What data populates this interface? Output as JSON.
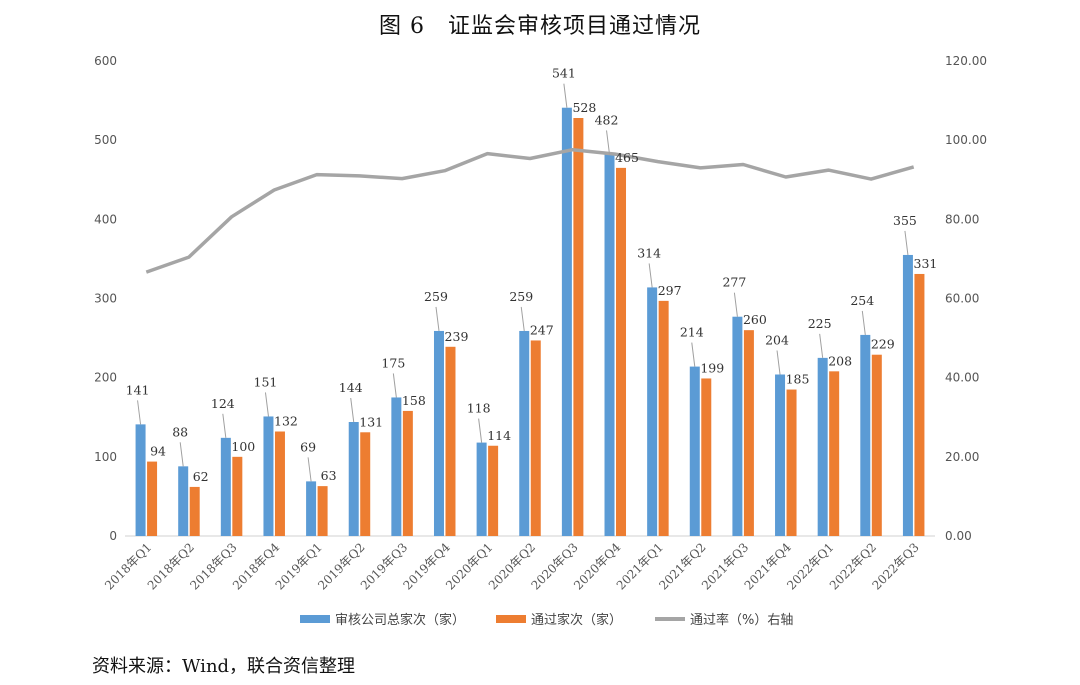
{
  "figure_title": "图 6　证监会审核项目通过情况",
  "source_note": "资料来源：Wind，联合资信整理",
  "chart_data": {
    "type": "bar",
    "title": "图 6　证监会审核项目通过情况",
    "categories": [
      "2018年Q1",
      "2018年Q2",
      "2018年Q3",
      "2018年Q4",
      "2019年Q1",
      "2019年Q2",
      "2019年Q3",
      "2019年Q4",
      "2020年Q1",
      "2020年Q2",
      "2020年Q3",
      "2020年Q4",
      "2021年Q1",
      "2021年Q2",
      "2021年Q3",
      "2021年Q4",
      "2022年Q1",
      "2022年Q2",
      "2022年Q3"
    ],
    "series": [
      {
        "name": "审核公司总家次（家）",
        "type": "bar",
        "axis": "left",
        "color": "#5b9bd5",
        "values": [
          141,
          88,
          124,
          151,
          69,
          144,
          175,
          259,
          118,
          259,
          541,
          482,
          314,
          214,
          277,
          204,
          225,
          254,
          355
        ]
      },
      {
        "name": "通过家次（家）",
        "type": "bar",
        "axis": "left",
        "color": "#ed7d31",
        "values": [
          94,
          62,
          100,
          132,
          63,
          131,
          158,
          239,
          114,
          247,
          528,
          465,
          297,
          199,
          260,
          185,
          208,
          229,
          331
        ]
      },
      {
        "name": "通过率（%）右轴",
        "type": "line",
        "axis": "right",
        "color": "#a5a5a5",
        "values": [
          66.67,
          70.45,
          80.65,
          87.42,
          91.3,
          90.97,
          90.29,
          92.28,
          96.61,
          95.37,
          97.6,
          96.47,
          94.59,
          92.99,
          93.86,
          90.69,
          92.44,
          90.16,
          93.24
        ]
      }
    ],
    "y_left": {
      "range": [
        0,
        600
      ],
      "ticks": [
        "0",
        "100",
        "200",
        "300",
        "400",
        "500",
        "600"
      ]
    },
    "y_right": {
      "range": [
        0,
        120
      ],
      "ticks": [
        "0.00",
        "20.00",
        "40.00",
        "60.00",
        "80.00",
        "100.00",
        "120.00"
      ]
    },
    "legend_position": "bottom",
    "grid": false
  }
}
